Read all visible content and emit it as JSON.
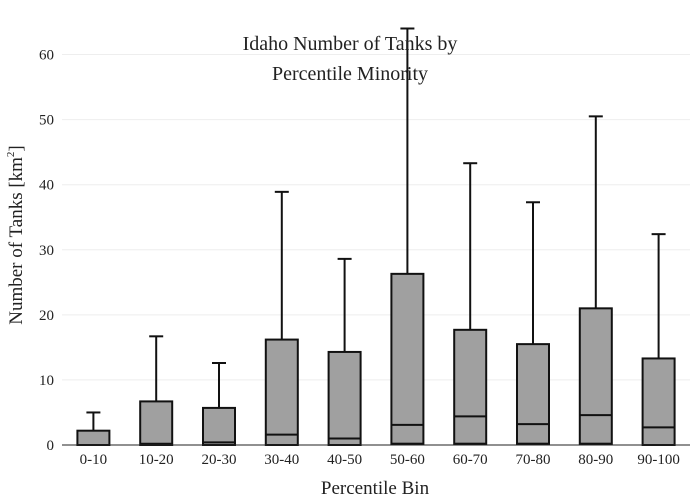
{
  "chart_data": {
    "type": "box",
    "title_lines": [
      "Idaho Number of Tanks by",
      "Percentile Minority"
    ],
    "xlabel": "Percentile Bin",
    "ylabel_main": "Number of Tanks  [km",
    "ylabel_sup": "2",
    "ylabel_end": "]",
    "ylim": [
      0,
      65
    ],
    "yticks": [
      0,
      10,
      20,
      30,
      40,
      50,
      60
    ],
    "grid": true,
    "legend": false,
    "colors": {
      "box_fill": "#a0a0a0",
      "line": "#111111",
      "grid": "#eeeeee"
    },
    "categories": [
      "0-10",
      "10-20",
      "20-30",
      "30-40",
      "40-50",
      "50-60",
      "60-70",
      "70-80",
      "80-90",
      "90-100"
    ],
    "boxes": [
      {
        "min": 0,
        "q1": 0,
        "median": 0,
        "q3": 2.2,
        "max": 5.0
      },
      {
        "min": 0,
        "q1": 0,
        "median": 0.2,
        "q3": 6.7,
        "max": 16.7
      },
      {
        "min": 0,
        "q1": 0,
        "median": 0.4,
        "q3": 5.7,
        "max": 12.6
      },
      {
        "min": 0,
        "q1": 0,
        "median": 1.6,
        "q3": 16.2,
        "max": 38.9
      },
      {
        "min": 0,
        "q1": 0,
        "median": 1.0,
        "q3": 14.3,
        "max": 28.6
      },
      {
        "min": 0,
        "q1": 0.2,
        "median": 3.1,
        "q3": 26.3,
        "max": 64.0
      },
      {
        "min": 0,
        "q1": 0.2,
        "median": 4.4,
        "q3": 17.7,
        "max": 43.3
      },
      {
        "min": 0,
        "q1": 0.2,
        "median": 3.2,
        "q3": 15.5,
        "max": 37.3
      },
      {
        "min": 0,
        "q1": 0.2,
        "median": 4.6,
        "q3": 21.0,
        "max": 50.5
      },
      {
        "min": 0,
        "q1": 0,
        "median": 2.7,
        "q3": 13.3,
        "max": 32.4
      }
    ]
  }
}
